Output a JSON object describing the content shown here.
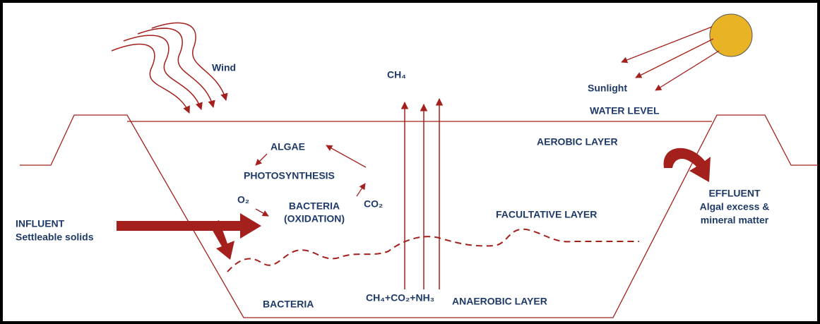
{
  "labels": {
    "wind": "Wind",
    "methane": "CH₄",
    "sunlight": "Sunlight",
    "water_level": "WATER LEVEL",
    "aerobic_layer": "AEROBIC LAYER",
    "algae": "ALGAE",
    "photosynthesis": "PHOTOSYNTHESIS",
    "oxygen": "O₂",
    "bacteria_oxidation": [
      "BACTERIA",
      "(OXIDATION)"
    ],
    "carbon_dioxide": "CO₂",
    "influent": [
      "INFLUENT",
      "Settleable solids"
    ],
    "facultative_layer": "FACULTATIVE LAYER",
    "effluent": [
      "EFFLUENT",
      "Algal excess &",
      "mineral matter"
    ],
    "gases": "CH₄+CO₂+NH₃",
    "bacteria": "BACTERIA",
    "anaerobic_layer": "ANAEROBIC LAYER"
  }
}
